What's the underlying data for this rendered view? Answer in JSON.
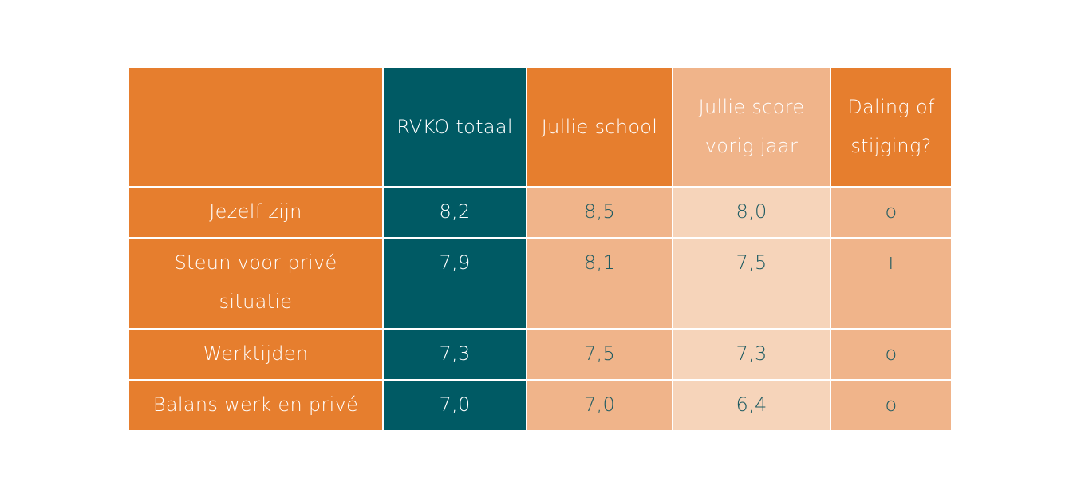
{
  "table": {
    "headers": {
      "label": "",
      "rvko": "RVKO totaal",
      "school": "Jullie school",
      "previous": "Jullie score vorig jaar",
      "trend": "Daling of stijging?"
    },
    "rows": [
      {
        "label": "Jezelf zijn",
        "rvko": "8,2",
        "school": "8,5",
        "previous": "8,0",
        "trend": "o"
      },
      {
        "label": "Steun voor privé situatie",
        "rvko": "7,9",
        "school": "8,1",
        "previous": "7,5",
        "trend": "+"
      },
      {
        "label": "Werktijden",
        "rvko": "7,3",
        "school": "7,5",
        "previous": "7,3",
        "trend": "o"
      },
      {
        "label": "Balans werk en privé",
        "rvko": "7,0",
        "school": "7,0",
        "previous": "6,4",
        "trend": "o"
      }
    ]
  },
  "colors": {
    "orange": "#e67e2e",
    "teal": "#005a64",
    "peach": "#f0b48a",
    "light_peach": "#f6d4ba",
    "value_text": "#1e5b62"
  }
}
